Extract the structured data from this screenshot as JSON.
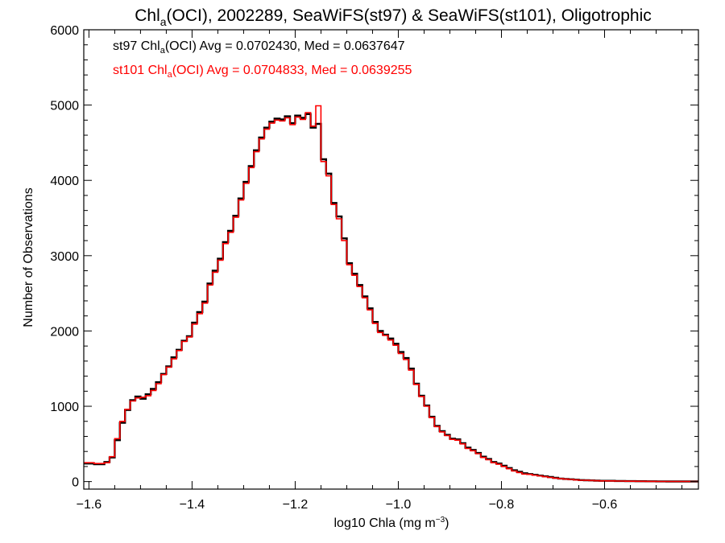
{
  "chart_data": {
    "type": "line",
    "title": {
      "pre": "Chl",
      "sub": "a",
      "post": "(OCI), 2002289, SeaWiFS(st97) & SeaWiFS(st101), Oligotrophic"
    },
    "xlabel": {
      "pre": "log10 Chla (mg m",
      "sup": "−3",
      "post": ")"
    },
    "ylabel": "Number of Observations",
    "xlim": [
      -1.61,
      -0.418
    ],
    "ylim": [
      -100,
      6000
    ],
    "xticks": [
      -1.6,
      -1.4,
      -1.2,
      -1.0,
      -0.8,
      -0.6
    ],
    "xtick_labels": [
      "−1.6",
      "−1.4",
      "−1.2",
      "−1.0",
      "−0.8",
      "−0.6"
    ],
    "yticks": [
      0,
      1000,
      2000,
      3000,
      4000,
      5000,
      6000
    ],
    "ytick_labels": [
      "0",
      "1000",
      "2000",
      "3000",
      "4000",
      "5000",
      "6000"
    ],
    "grid": false,
    "annotations": [
      {
        "pre": "st97 Chl",
        "sub": "a",
        "post": "(OCI) Avg = 0.0702430, Med = 0.0637647",
        "color": "#000000"
      },
      {
        "pre": "st101 Chl",
        "sub": "a",
        "post": "(OCI) Avg = 0.0704833, Med = 0.0639255",
        "color": "#ff0000"
      }
    ],
    "series": [
      {
        "color": "#000000",
        "x": [
          -1.61,
          -1.59,
          -1.57,
          -1.56,
          -1.55,
          -1.54,
          -1.53,
          -1.52,
          -1.51,
          -1.5,
          -1.49,
          -1.48,
          -1.47,
          -1.46,
          -1.45,
          -1.44,
          -1.43,
          -1.42,
          -1.41,
          -1.4,
          -1.39,
          -1.38,
          -1.37,
          -1.36,
          -1.35,
          -1.34,
          -1.33,
          -1.32,
          -1.31,
          -1.3,
          -1.29,
          -1.28,
          -1.27,
          -1.26,
          -1.25,
          -1.24,
          -1.23,
          -1.22,
          -1.21,
          -1.2,
          -1.19,
          -1.18,
          -1.17,
          -1.16,
          -1.15,
          -1.14,
          -1.13,
          -1.12,
          -1.11,
          -1.1,
          -1.09,
          -1.08,
          -1.07,
          -1.06,
          -1.05,
          -1.04,
          -1.03,
          -1.02,
          -1.01,
          -1.0,
          -0.99,
          -0.98,
          -0.97,
          -0.96,
          -0.95,
          -0.94,
          -0.93,
          -0.92,
          -0.91,
          -0.9,
          -0.89,
          -0.88,
          -0.87,
          -0.86,
          -0.85,
          -0.84,
          -0.83,
          -0.82,
          -0.81,
          -0.8,
          -0.79,
          -0.78,
          -0.77,
          -0.76,
          -0.75,
          -0.74,
          -0.73,
          -0.72,
          -0.71,
          -0.7,
          -0.69,
          -0.68,
          -0.67,
          -0.66,
          -0.65,
          -0.64,
          -0.63,
          -0.62,
          -0.61,
          -0.6,
          -0.58,
          -0.56,
          -0.54,
          -0.52,
          -0.5,
          -0.48,
          -0.46,
          -0.44,
          -0.42
        ],
        "y": [
          240,
          230,
          260,
          320,
          550,
          780,
          950,
          1080,
          1130,
          1100,
          1160,
          1230,
          1320,
          1430,
          1530,
          1650,
          1750,
          1870,
          1930,
          2110,
          2250,
          2390,
          2630,
          2800,
          2960,
          3180,
          3330,
          3530,
          3760,
          3980,
          4190,
          4400,
          4570,
          4700,
          4780,
          4820,
          4810,
          4850,
          4760,
          4860,
          4830,
          4880,
          4700,
          4750,
          4280,
          4090,
          3700,
          3520,
          3230,
          2900,
          2760,
          2610,
          2460,
          2300,
          2120,
          2000,
          1950,
          1900,
          1830,
          1720,
          1640,
          1500,
          1300,
          1140,
          1010,
          860,
          740,
          670,
          620,
          570,
          560,
          510,
          450,
          420,
          380,
          330,
          300,
          260,
          240,
          210,
          180,
          150,
          130,
          110,
          100,
          90,
          80,
          70,
          60,
          50,
          40,
          35,
          30,
          25,
          20,
          18,
          15,
          12,
          10,
          10,
          8,
          6,
          5,
          4,
          3,
          2,
          2,
          1,
          1
        ]
      },
      {
        "color": "#ff0000",
        "x": [
          -1.61,
          -1.59,
          -1.57,
          -1.56,
          -1.55,
          -1.54,
          -1.53,
          -1.52,
          -1.51,
          -1.5,
          -1.49,
          -1.48,
          -1.47,
          -1.46,
          -1.45,
          -1.44,
          -1.43,
          -1.42,
          -1.41,
          -1.4,
          -1.39,
          -1.38,
          -1.37,
          -1.36,
          -1.35,
          -1.34,
          -1.33,
          -1.32,
          -1.31,
          -1.3,
          -1.29,
          -1.28,
          -1.27,
          -1.26,
          -1.25,
          -1.24,
          -1.23,
          -1.22,
          -1.21,
          -1.2,
          -1.19,
          -1.18,
          -1.17,
          -1.16,
          -1.15,
          -1.14,
          -1.13,
          -1.12,
          -1.11,
          -1.1,
          -1.09,
          -1.08,
          -1.07,
          -1.06,
          -1.05,
          -1.04,
          -1.03,
          -1.02,
          -1.01,
          -1.0,
          -0.99,
          -0.98,
          -0.97,
          -0.96,
          -0.95,
          -0.94,
          -0.93,
          -0.92,
          -0.91,
          -0.9,
          -0.89,
          -0.88,
          -0.87,
          -0.86,
          -0.85,
          -0.84,
          -0.83,
          -0.82,
          -0.81,
          -0.8,
          -0.79,
          -0.78,
          -0.77,
          -0.76,
          -0.75,
          -0.74,
          -0.73,
          -0.72,
          -0.71,
          -0.7,
          -0.69,
          -0.68,
          -0.67,
          -0.66,
          -0.65,
          -0.64,
          -0.63,
          -0.62,
          -0.61,
          -0.6,
          -0.58,
          -0.56,
          -0.54,
          -0.52,
          -0.5,
          -0.48,
          -0.46,
          -0.44,
          -0.42
        ],
        "y": [
          250,
          240,
          250,
          330,
          570,
          800,
          960,
          1070,
          1110,
          1120,
          1140,
          1210,
          1300,
          1420,
          1520,
          1630,
          1740,
          1860,
          1920,
          2090,
          2230,
          2370,
          2610,
          2780,
          2940,
          3160,
          3310,
          3510,
          3740,
          3960,
          4170,
          4380,
          4550,
          4680,
          4760,
          4800,
          4790,
          4830,
          4740,
          4840,
          4810,
          4900,
          4720,
          4990,
          4250,
          4060,
          3680,
          3490,
          3200,
          2880,
          2740,
          2590,
          2440,
          2280,
          2100,
          1980,
          1940,
          1880,
          1810,
          1700,
          1620,
          1480,
          1290,
          1130,
          1000,
          850,
          730,
          660,
          610,
          560,
          550,
          500,
          440,
          410,
          370,
          320,
          290,
          250,
          230,
          200,
          170,
          140,
          120,
          100,
          95,
          85,
          75,
          65,
          55,
          45,
          38,
          32,
          28,
          22,
          18,
          16,
          14,
          11,
          9,
          9,
          7,
          5,
          4,
          3,
          2,
          2,
          1,
          1,
          0
        ]
      }
    ]
  }
}
